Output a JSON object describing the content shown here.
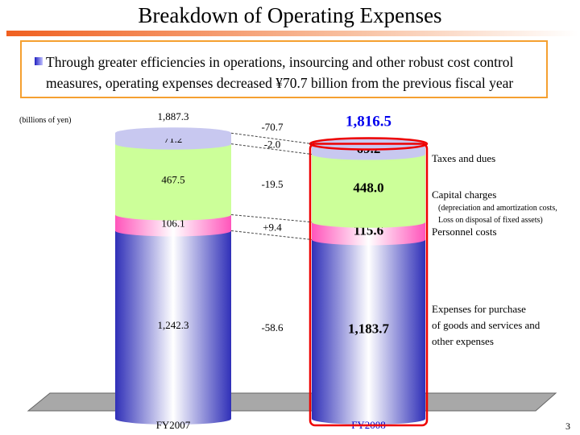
{
  "header": {
    "title": "Breakdown of Operating Expenses",
    "summary": "Through greater efficiencies in operations, insourcing and other robust cost control measures, operating expenses decreased ¥70.7 billion from the previous fiscal year"
  },
  "page_number": "3",
  "chart_data": {
    "type": "stacked-bar",
    "unit_label": "(billions of yen)",
    "categories": [
      "FY2007",
      "FY2008"
    ],
    "totals": [
      "1,887.3",
      "1,816.5"
    ],
    "total_change": "-70.7",
    "series": [
      {
        "name": "Expenses for purchase of goods and services and other expenses",
        "legend_lines": [
          "Expenses for purchase",
          "of goods and services and",
          "other expenses"
        ],
        "values": [
          1242.3,
          1183.7
        ],
        "labels": [
          "1,242.3",
          "1,183.7"
        ],
        "change": "-58.6",
        "color": "#3333bb"
      },
      {
        "name": "Personnel costs",
        "legend_lines": [
          "Personnel costs"
        ],
        "values": [
          106.1,
          115.6
        ],
        "labels": [
          "106.1",
          "115.6"
        ],
        "change": "+9.4",
        "color": "#ff66cc"
      },
      {
        "name": "Capital charges",
        "legend_lines": [
          "Capital charges",
          "(depreciation and amortization costs,",
          "Loss on disposal of fixed assets)"
        ],
        "values": [
          467.5,
          448.0
        ],
        "labels": [
          "467.5",
          "448.0"
        ],
        "change": "-19.5",
        "color": "#ccff99"
      },
      {
        "name": "Taxes and dues",
        "legend_lines": [
          "Taxes and dues"
        ],
        "values": [
          71.2,
          69.2
        ],
        "labels": [
          "71.2",
          "69.2"
        ],
        "change": "-2.0",
        "color": "#c8c8f0"
      }
    ],
    "highlight_color": "#ee0000",
    "total_highlight_color": "#0000ee"
  }
}
